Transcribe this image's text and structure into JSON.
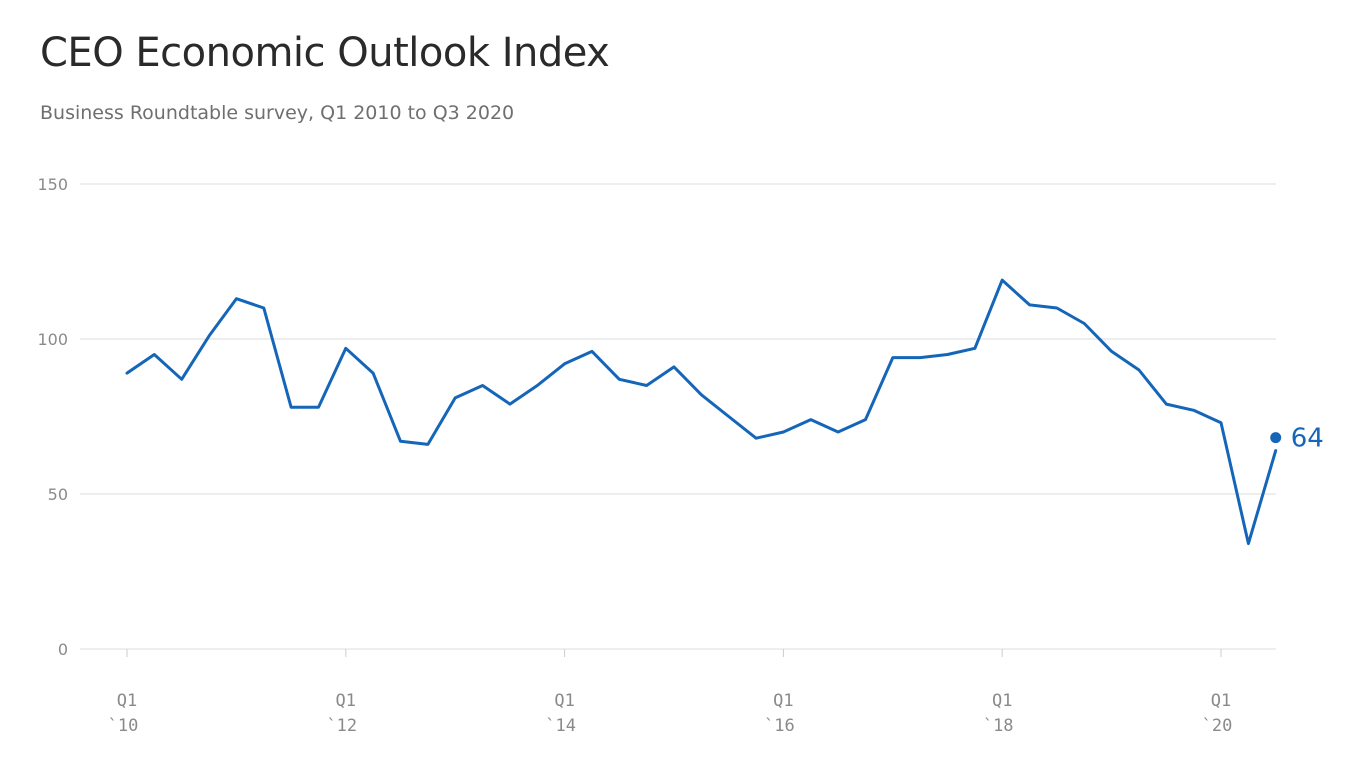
{
  "header": {
    "title": "CEO Economic Outlook Index",
    "subtitle": "Business Roundtable survey, Q1 2010 to Q3 2020"
  },
  "colors": {
    "line": "#1565b8",
    "grid": "#dddddd",
    "axis_text": "#8a8a8a"
  },
  "chart_data": {
    "type": "line",
    "title": "CEO Economic Outlook Index",
    "subtitle": "Business Roundtable survey, Q1 2010 to Q3 2020",
    "xlabel": "",
    "ylabel": "",
    "ylim": [
      0,
      150
    ],
    "yticks": [
      0,
      50,
      100,
      150
    ],
    "grid": true,
    "x_tick_labels": [
      {
        "quarter": "Q1 2010",
        "line1": "Q1",
        "line2": "`10"
      },
      {
        "quarter": "Q1 2012",
        "line1": "Q1",
        "line2": "`12"
      },
      {
        "quarter": "Q1 2014",
        "line1": "Q1",
        "line2": "`14"
      },
      {
        "quarter": "Q1 2016",
        "line1": "Q1",
        "line2": "`16"
      },
      {
        "quarter": "Q1 2018",
        "line1": "Q1",
        "line2": "`18"
      },
      {
        "quarter": "Q1 2020",
        "line1": "Q1",
        "line2": "`20"
      }
    ],
    "x": [
      "Q1 2010",
      "Q2 2010",
      "Q3 2010",
      "Q4 2010",
      "Q1 2011",
      "Q2 2011",
      "Q3 2011",
      "Q4 2011",
      "Q1 2012",
      "Q2 2012",
      "Q3 2012",
      "Q4 2012",
      "Q1 2013",
      "Q2 2013",
      "Q3 2013",
      "Q4 2013",
      "Q1 2014",
      "Q2 2014",
      "Q3 2014",
      "Q4 2014",
      "Q1 2015",
      "Q2 2015",
      "Q3 2015",
      "Q4 2015",
      "Q1 2016",
      "Q2 2016",
      "Q3 2016",
      "Q4 2016",
      "Q1 2017",
      "Q2 2017",
      "Q3 2017",
      "Q4 2017",
      "Q1 2018",
      "Q2 2018",
      "Q3 2018",
      "Q4 2018",
      "Q1 2019",
      "Q2 2019",
      "Q3 2019",
      "Q4 2019",
      "Q1 2020",
      "Q2 2020",
      "Q3 2020"
    ],
    "series": [
      {
        "values": [
          89,
          95,
          87,
          101,
          113,
          110,
          78,
          78,
          97,
          89,
          67,
          66,
          81,
          85,
          79,
          85,
          92,
          96,
          87,
          85,
          91,
          82,
          75,
          68,
          70,
          74,
          70,
          74,
          94,
          94,
          95,
          97,
          119,
          111,
          110,
          105,
          96,
          90,
          79,
          77,
          73,
          34,
          64
        ]
      }
    ],
    "end_label": "64"
  }
}
